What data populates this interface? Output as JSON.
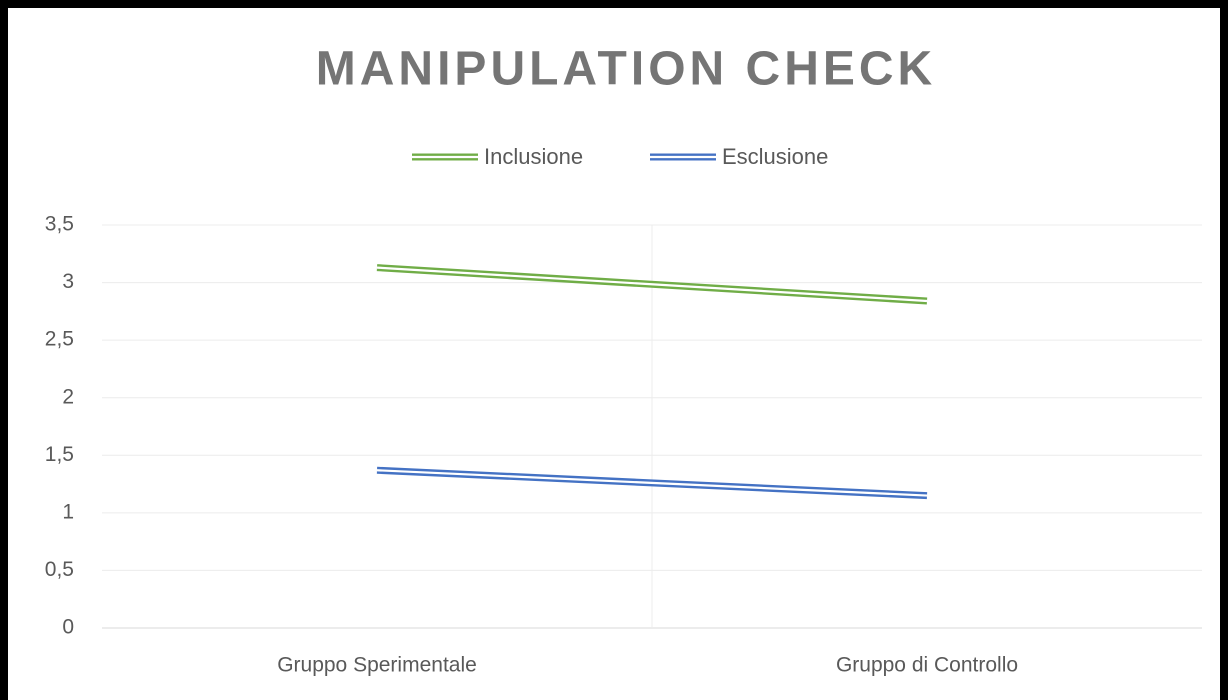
{
  "chart_data": {
    "type": "line",
    "title": "MANIPULATION CHECK",
    "categories": [
      "Gruppo Sperimentale",
      "Gruppo di Controllo"
    ],
    "series": [
      {
        "name": "Inclusione",
        "color": "#70ad47",
        "values": [
          3.13,
          2.84
        ]
      },
      {
        "name": "Esclusione",
        "color": "#4472c4",
        "values": [
          1.37,
          1.15
        ]
      }
    ],
    "ylim": [
      0,
      3.5
    ],
    "yticks": [
      0,
      {
        "value": 0.5,
        "label": "0,5"
      },
      1,
      {
        "value": 1.5,
        "label": "1,5"
      },
      2,
      {
        "value": 2.5,
        "label": "2,5"
      },
      3,
      {
        "value": 3.5,
        "label": "3,5"
      }
    ],
    "grid": true
  }
}
